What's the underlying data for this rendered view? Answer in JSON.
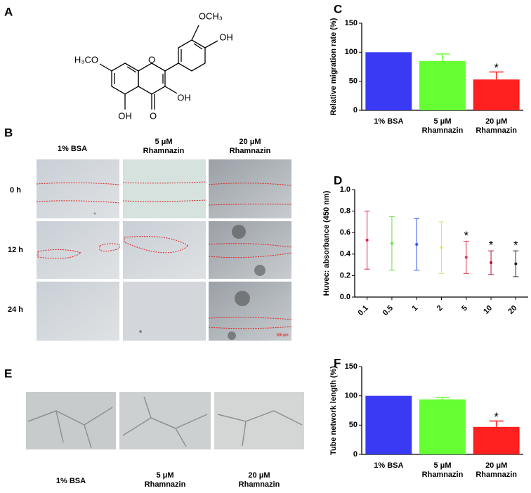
{
  "panels": {
    "a": "A",
    "b": "B",
    "c": "C",
    "d": "D",
    "e": "E",
    "f": "F"
  },
  "structure": {
    "labels": [
      "OCH₃",
      "OH",
      "H₃CO",
      "OH",
      "O",
      "OH",
      "O"
    ]
  },
  "migration_images": {
    "columns": [
      "1% BSA",
      "5 μM Rhamnazin",
      "20 μM Rhamnazin"
    ],
    "rows": [
      "0 h",
      "12 h",
      "24 h"
    ],
    "scale_bar": "100 μm"
  },
  "tube_images": {
    "columns": [
      "1% BSA",
      "5 μM Rhamnazin",
      "20 μM Rhamnazin"
    ]
  },
  "chart_data": [
    {
      "type": "bar",
      "ylabel": "Relative migration rate (%)",
      "categories": [
        "1% BSA",
        "5 μM Rhamnazin",
        "20 μM Rhamnazin"
      ],
      "values": [
        100,
        85,
        53
      ],
      "errors": [
        null,
        12,
        13
      ],
      "colors": [
        "#3a3af5",
        "#66ff33",
        "#ff2020"
      ],
      "ylim": [
        0,
        150
      ],
      "yticks": [
        0,
        50,
        100,
        150
      ],
      "significance": [
        null,
        null,
        "*"
      ]
    },
    {
      "type": "errorbar",
      "ylabel": "Huvec: absorbance (450 nm)",
      "categories": [
        "0.1",
        "0.5",
        "1",
        "2",
        "5",
        "10",
        "20"
      ],
      "values": [
        0.53,
        0.5,
        0.49,
        0.46,
        0.37,
        0.32,
        0.31
      ],
      "errors": [
        0.27,
        0.25,
        0.24,
        0.24,
        0.15,
        0.11,
        0.12
      ],
      "colors": [
        "#e0204a",
        "#66dd44",
        "#3355ee",
        "#ccee66",
        "#dd3355",
        "#b0102a",
        "#222222"
      ],
      "ylim": [
        0,
        1
      ],
      "yticks": [
        {
          "value": 0,
          "label": "0.0"
        },
        0.2,
        0.4,
        0.6,
        0.8,
        {
          "value": 1,
          "label": "1.0"
        }
      ],
      "significance": [
        null,
        null,
        null,
        null,
        "*",
        "*",
        "*"
      ]
    },
    {
      "type": "bar",
      "ylabel": "Tube network length (%)",
      "categories": [
        "1% BSA",
        "5 μM Rhamnazin",
        "20 μM Rhamnazin"
      ],
      "values": [
        100,
        94,
        47
      ],
      "errors": [
        null,
        3,
        10
      ],
      "colors": [
        "#3a3af5",
        "#66ff33",
        "#ff2020"
      ],
      "ylim": [
        0,
        150
      ],
      "yticks": [
        0,
        50,
        100,
        150
      ],
      "significance": [
        null,
        null,
        "*"
      ]
    }
  ]
}
